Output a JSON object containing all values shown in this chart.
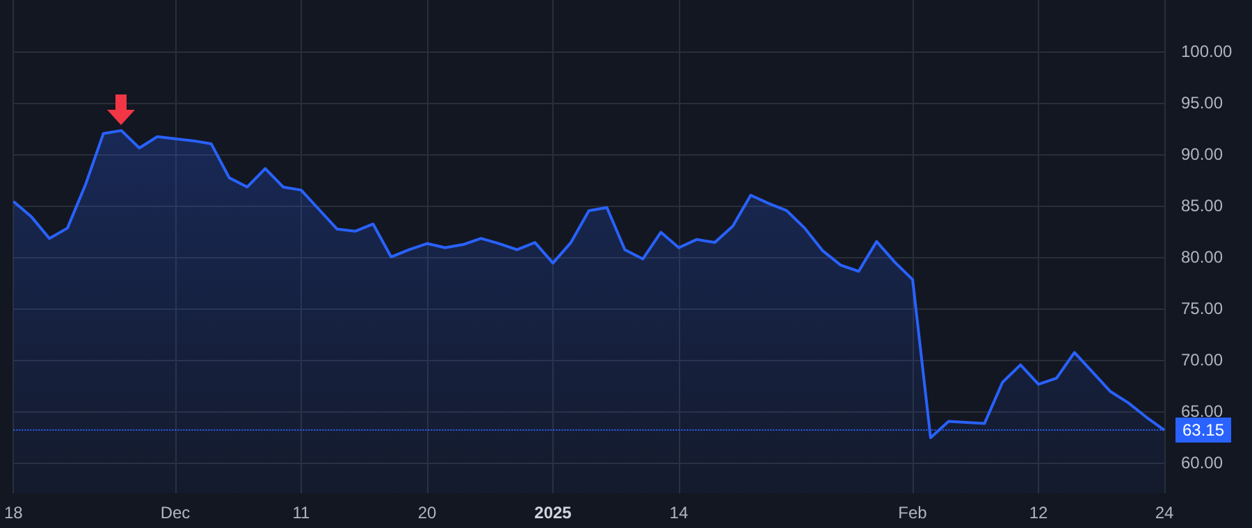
{
  "chart_data": {
    "type": "area",
    "categories": [
      "18",
      null,
      null,
      null,
      null,
      null,
      null,
      null,
      null,
      "Dec",
      null,
      null,
      null,
      null,
      null,
      null,
      "11",
      null,
      null,
      null,
      null,
      null,
      null,
      "20",
      null,
      null,
      null,
      null,
      null,
      null,
      "2025",
      null,
      null,
      null,
      null,
      null,
      null,
      "14",
      null,
      null,
      null,
      null,
      null,
      null,
      null,
      null,
      null,
      null,
      null,
      null,
      "Feb",
      null,
      null,
      null,
      null,
      null,
      null,
      "12",
      null,
      null,
      null,
      null,
      null,
      null,
      "24"
    ],
    "series": [
      {
        "color": "#2962ff",
        "values": [
          85.4,
          83.9,
          81.8,
          82.8,
          87.0,
          92.0,
          92.3,
          90.6,
          91.7,
          91.5,
          91.3,
          91.0,
          87.7,
          86.8,
          88.6,
          86.8,
          86.5,
          84.6,
          82.7,
          82.5,
          83.2,
          80.0,
          80.7,
          81.3,
          80.9,
          81.2,
          81.8,
          81.3,
          80.7,
          81.4,
          79.4,
          81.4,
          84.5,
          84.8,
          80.7,
          79.8,
          82.4,
          80.9,
          81.7,
          81.4,
          83.0,
          86.0,
          85.2,
          84.5,
          82.8,
          80.6,
          79.2,
          78.6,
          81.5,
          79.5,
          77.8,
          62.4,
          64.0,
          63.9,
          63.8,
          67.8,
          69.5,
          67.6,
          68.2,
          70.7,
          68.8,
          66.9,
          65.8,
          64.4,
          63.15
        ]
      }
    ],
    "ylim": [
      57,
      105
    ],
    "yticks": [
      {
        "value": 60,
        "label": "60.00"
      },
      {
        "value": 65,
        "label": "65.00"
      },
      {
        "value": 70,
        "label": "70.00"
      },
      {
        "value": 75,
        "label": "75.00"
      },
      {
        "value": 80,
        "label": "80.00"
      },
      {
        "value": 85,
        "label": "85.00"
      },
      {
        "value": 90,
        "label": "90.00"
      },
      {
        "value": 95,
        "label": "95.00"
      },
      {
        "value": 100,
        "label": "100.00"
      }
    ],
    "ref_lines": [
      {
        "axis": "y",
        "value": 63.15,
        "label": "63.15",
        "color": "#2962ff",
        "line_style": "dotted"
      }
    ],
    "grid": true,
    "marker": "none",
    "line_style": "solid"
  }
}
